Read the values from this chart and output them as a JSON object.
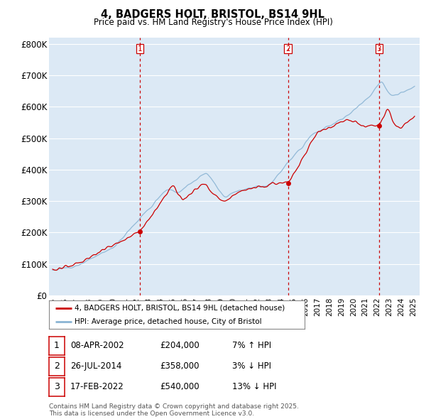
{
  "title": "4, BADGERS HOLT, BRISTOL, BS14 9HL",
  "subtitle": "Price paid vs. HM Land Registry's House Price Index (HPI)",
  "ylim": [
    0,
    820000
  ],
  "yticks": [
    0,
    100000,
    200000,
    300000,
    400000,
    500000,
    600000,
    700000,
    800000
  ],
  "ytick_labels": [
    "£0",
    "£100K",
    "£200K",
    "£300K",
    "£400K",
    "£500K",
    "£600K",
    "£700K",
    "£800K"
  ],
  "xlim_start": 1994.7,
  "xlim_end": 2025.5,
  "bg_color": "#dce9f5",
  "red_color": "#cc0000",
  "blue_color": "#8ab4d4",
  "transaction_dates": [
    2002.27,
    2014.56,
    2022.12
  ],
  "transaction_prices": [
    204000,
    358000,
    540000
  ],
  "transaction_labels": [
    "1",
    "2",
    "3"
  ],
  "legend_line1": "4, BADGERS HOLT, BRISTOL, BS14 9HL (detached house)",
  "legend_line2": "HPI: Average price, detached house, City of Bristol",
  "table_rows": [
    [
      "1",
      "08-APR-2002",
      "£204,000",
      "7% ↑ HPI"
    ],
    [
      "2",
      "26-JUL-2014",
      "£358,000",
      "3% ↓ HPI"
    ],
    [
      "3",
      "17-FEB-2022",
      "£540,000",
      "13% ↓ HPI"
    ]
  ],
  "footnote": "Contains HM Land Registry data © Crown copyright and database right 2025.\nThis data is licensed under the Open Government Licence v3.0."
}
